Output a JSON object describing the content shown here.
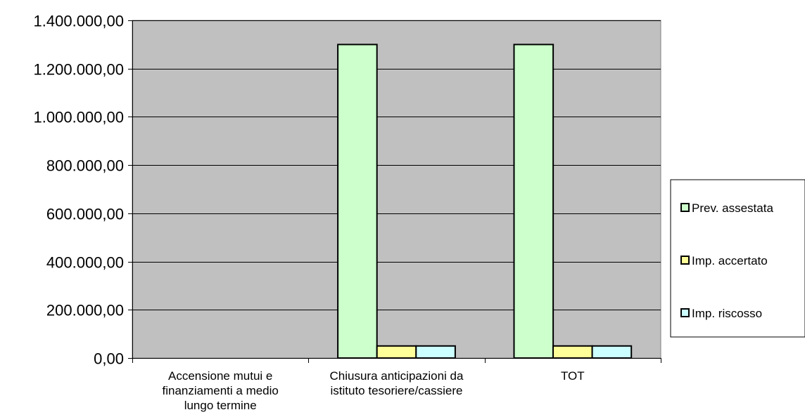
{
  "chart_data": {
    "type": "bar",
    "title": "",
    "xlabel": "",
    "ylabel": "",
    "categories": [
      [
        "Accensione mutui e",
        "finanziamenti a medio",
        "lungo termine"
      ],
      [
        "Chiusura anticipazioni da",
        "istituto tesoriere/cassiere"
      ],
      [
        "TOT"
      ]
    ],
    "series": [
      {
        "name": "Prev. assestata",
        "color": "#ccffcc",
        "values": [
          0,
          1300000,
          1300000
        ]
      },
      {
        "name": "Imp. accertato",
        "color": "#ffff99",
        "values": [
          0,
          50000,
          50000
        ]
      },
      {
        "name": "Imp. riscosso",
        "color": "#ccffff",
        "values": [
          0,
          50000,
          50000
        ]
      }
    ],
    "ylim": [
      0,
      1400000
    ],
    "yticks": [
      0,
      200000,
      400000,
      600000,
      800000,
      1000000,
      1200000,
      1400000
    ],
    "ytick_labels": [
      "0,00",
      "200.000,00",
      "400.000,00",
      "600.000,00",
      "800.000,00",
      "1.000.000,00",
      "1.200.000,00",
      "1.400.000,00"
    ],
    "grid": true,
    "plot_background": "#c0c0c0",
    "legend": "right"
  }
}
